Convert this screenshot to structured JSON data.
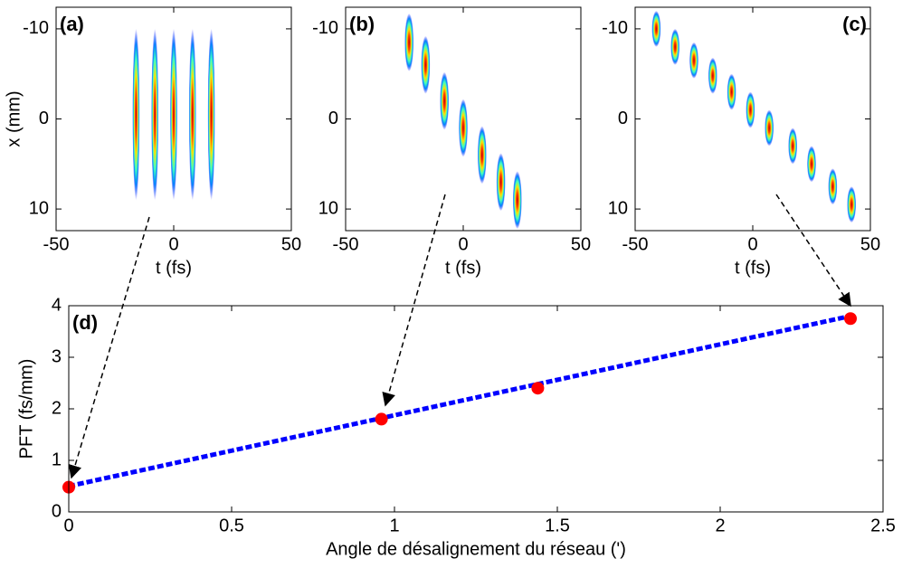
{
  "chart_data": [
    {
      "type": "heatmap",
      "label": "(a)",
      "xlabel": "t (fs)",
      "ylabel": "x (mm)",
      "xlim": [
        -50,
        50
      ],
      "xticks": [
        -50,
        0,
        50
      ],
      "ylim": [
        -12.4,
        12.4
      ],
      "yticks": [
        -10,
        0,
        10
      ],
      "y_inverted": true,
      "x": [
        -16,
        -8,
        0,
        8,
        16
      ],
      "y": [
        -0.5,
        -0.5,
        -0.5,
        -0.5,
        -0.5
      ]
    },
    {
      "type": "heatmap",
      "label": "(b)",
      "xlabel": "t (fs)",
      "xlim": [
        -50,
        50
      ],
      "xticks": [
        -50,
        0,
        50
      ],
      "ylim": [
        -12.4,
        12.4
      ],
      "yticks": [
        -10,
        0,
        10
      ],
      "y_inverted": true,
      "x": [
        -23,
        -16,
        -8,
        0,
        8,
        16,
        23
      ],
      "y": [
        -8.5,
        -6,
        -2,
        1,
        4,
        7,
        9
      ]
    },
    {
      "type": "heatmap",
      "label": "(c)",
      "xlabel": "t (fs)",
      "xlim": [
        -50,
        50
      ],
      "xticks": [
        -50,
        0,
        50
      ],
      "ylim": [
        -12.4,
        12.4
      ],
      "yticks": [
        -10,
        0,
        10
      ],
      "y_inverted": true,
      "x": [
        -41,
        -33,
        -25,
        -17,
        -9,
        -1,
        7,
        17,
        25,
        34,
        42
      ],
      "y": [
        -10,
        -8,
        -6.5,
        -4.8,
        -3,
        -1,
        1,
        3,
        5,
        7.5,
        9.5
      ]
    },
    {
      "type": "scatter",
      "label": "(d)",
      "xlabel": "Angle de désalignement du réseau (')",
      "ylabel": "PFT (fs/mm)",
      "xlim": [
        0,
        2.5
      ],
      "xticks": [
        0,
        0.5,
        1,
        1.5,
        2,
        2.5
      ],
      "ylim": [
        0,
        4
      ],
      "yticks": [
        0,
        1,
        2,
        3,
        4
      ],
      "x": [
        0,
        0.96,
        1.44,
        2.4
      ],
      "values": [
        0.48,
        1.8,
        2.4,
        3.75
      ],
      "color": "#ff0000",
      "fit": {
        "x": [
          0,
          2.4
        ],
        "values": [
          0.5,
          3.8
        ],
        "color": "#0000ff"
      }
    }
  ]
}
